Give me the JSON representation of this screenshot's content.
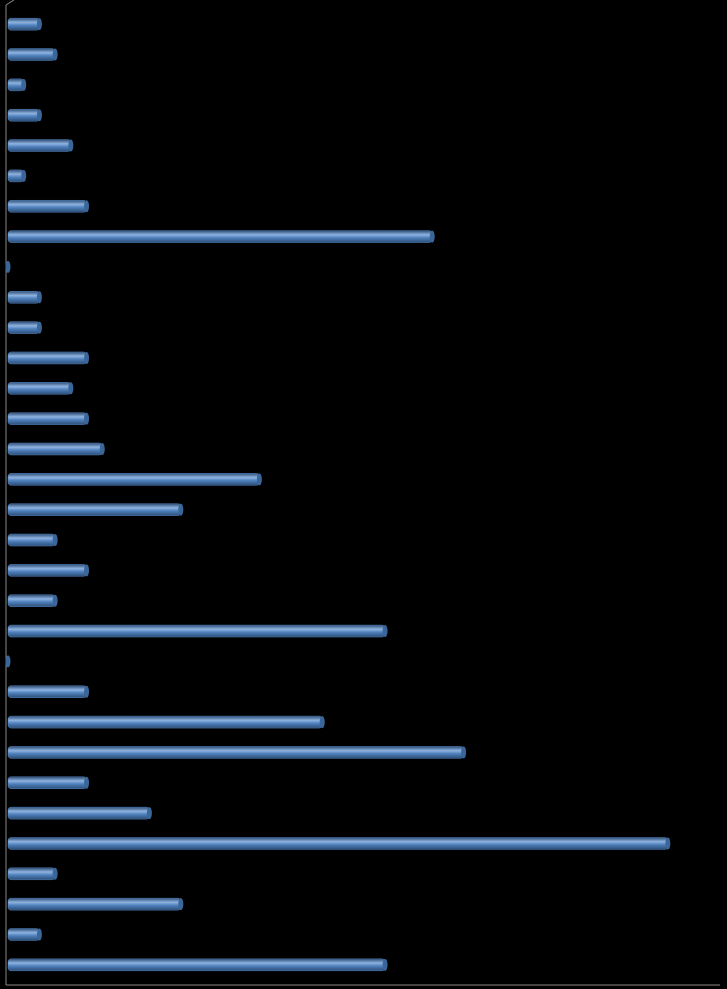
{
  "chart_data": {
    "type": "barh",
    "categories": [
      null,
      null,
      null,
      null,
      null,
      null,
      null,
      null,
      null,
      null,
      null,
      null,
      null,
      null,
      null,
      null,
      null,
      null,
      null,
      null,
      null,
      null,
      null,
      null,
      null,
      null,
      null,
      null,
      null,
      null,
      null,
      null
    ],
    "values": [
      2,
      3,
      1,
      2,
      4,
      1,
      5,
      27,
      0,
      2,
      2,
      5,
      4,
      5,
      6,
      16,
      11,
      3,
      5,
      3,
      24,
      0,
      5,
      20,
      29,
      5,
      9,
      42,
      3,
      11,
      2,
      24
    ],
    "color": "#4f81bd",
    "xlim": [
      0,
      45
    ]
  }
}
